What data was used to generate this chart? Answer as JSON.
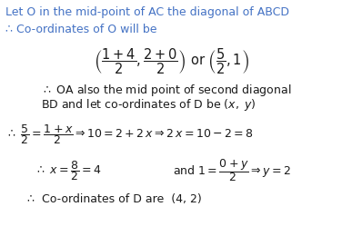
{
  "background_color": "#ffffff",
  "text_color": "#4472c4",
  "math_color": "#1a1a1a",
  "title_line1": "Let O in the mid-point of AC the diagonal of ABCD",
  "title_line2": "∴ Co-ordinates of O will be",
  "line3_latex": "$\\left(\\dfrac{1+4}{2},\\dfrac{2+0}{2}\\right)$ or $\\left(\\dfrac{5}{2},1\\right)$",
  "line4a": "∴ OA also the mid point of second diagonal",
  "line4b": "BD and let co-ordinates of D be (",
  "line5_latex": "$\\therefore\\ \\dfrac{5}{2}=\\dfrac{1+x}{2}\\Rightarrow 10=2+2\\,x\\Rightarrow 2\\,x=10-2=8$",
  "line6a_latex": "$\\therefore\\ x=\\dfrac{8}{2}=4$",
  "line6b_latex": "and $1=\\dfrac{0+y}{2}\\Rightarrow y=2$",
  "line7": "∴  Co-ordinates of D are  (4, 2)",
  "figsize": [
    3.76,
    2.71
  ],
  "dpi": 100
}
